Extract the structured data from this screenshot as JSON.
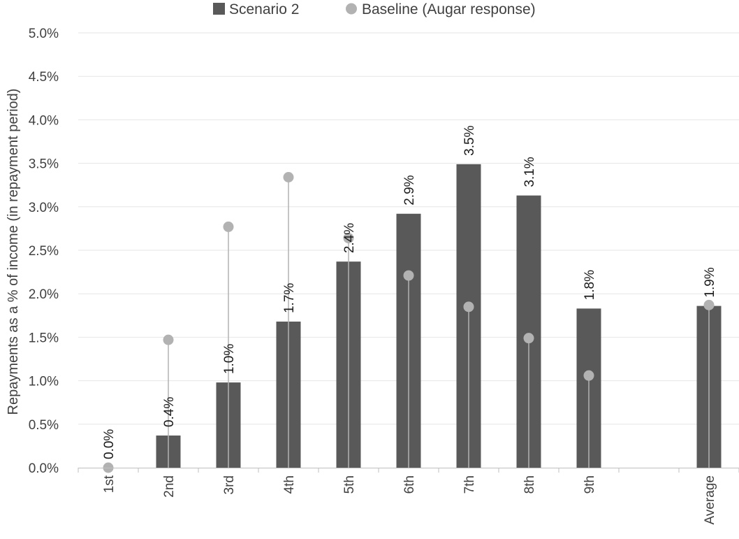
{
  "chart_data": {
    "type": "bar",
    "title": "",
    "xlabel": "",
    "ylabel": "Repayments as a % of income (in repayment period)",
    "categories": [
      "1st",
      "2nd",
      "3rd",
      "4th",
      "5th",
      "6th",
      "7th",
      "8th",
      "9th",
      "",
      "Average"
    ],
    "ylim": [
      0,
      5.0
    ],
    "y_tick_step": 0.5,
    "y_tick_labels": [
      "0.0%",
      "0.5%",
      "1.0%",
      "1.5%",
      "2.0%",
      "2.5%",
      "3.0%",
      "3.5%",
      "4.0%",
      "4.5%",
      "5.0%"
    ],
    "grid": true,
    "legend_position": "top",
    "series": [
      {
        "name": "Scenario 2",
        "kind": "bar",
        "color": "#595959",
        "values": [
          0.0,
          0.37,
          0.98,
          1.68,
          2.37,
          2.92,
          3.49,
          3.13,
          1.83,
          null,
          1.86
        ],
        "data_labels": [
          "0.0%",
          "0.4%",
          "1.0%",
          "1.7%",
          "2.4%",
          "2.9%",
          "3.5%",
          "3.1%",
          "1.8%",
          "",
          "1.9%"
        ]
      },
      {
        "name": "Baseline (Augar response)",
        "kind": "lollipop",
        "color": "#b2b2b2",
        "values": [
          0.0,
          1.47,
          2.77,
          3.34,
          2.64,
          2.21,
          1.85,
          1.49,
          1.06,
          null,
          1.87
        ]
      }
    ]
  }
}
